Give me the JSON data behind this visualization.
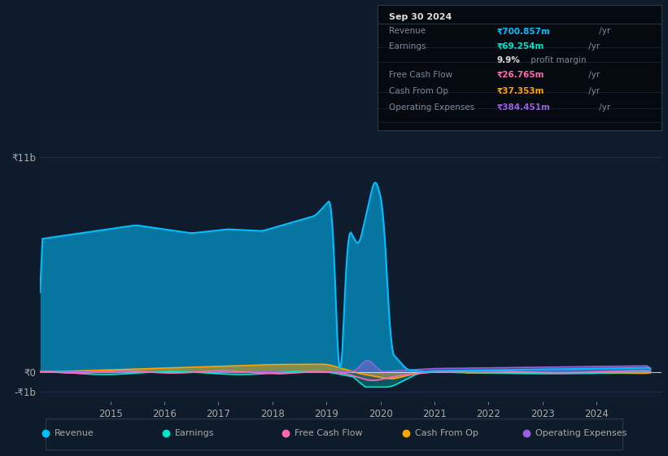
{
  "bg_color": "#0d1b2a",
  "plot_bg_color": "#0e1c2e",
  "grid_color": "#1e3a5f",
  "text_color": "#aaaaaa",
  "title_label": "₹11b",
  "y_label_zero": "₹0",
  "y_label_neg": "-₹1b",
  "x_ticks": [
    2015,
    2016,
    2017,
    2018,
    2019,
    2020,
    2021,
    2022,
    2023,
    2024
  ],
  "ylim_low": -1500000000.0,
  "ylim_high": 12500000000.0,
  "revenue_color": "#00bfff",
  "earnings_color": "#00e5cc",
  "fcf_color": "#ff69b4",
  "cashfromop_color": "#ffa500",
  "opex_color": "#9b5fe0",
  "info_box": {
    "date": "Sep 30 2024",
    "rows": [
      {
        "label": "Revenue",
        "value": "₹700.857m",
        "suffix": " /yr",
        "color": "#00bfff"
      },
      {
        "label": "Earnings",
        "value": "₹69.254m",
        "suffix": " /yr",
        "color": "#00e5cc"
      },
      {
        "label": "",
        "value": "9.9%",
        "suffix": " profit margin",
        "color": "#ffffff"
      },
      {
        "label": "Free Cash Flow",
        "value": "₹26.765m",
        "suffix": " /yr",
        "color": "#ff69b4"
      },
      {
        "label": "Cash From Op",
        "value": "₹37.353m",
        "suffix": " /yr",
        "color": "#ffa500"
      },
      {
        "label": "Operating Expenses",
        "value": "₹384.451m",
        "suffix": " /yr",
        "color": "#9b5fe0"
      }
    ]
  },
  "legend_items": [
    {
      "label": "Revenue",
      "color": "#00bfff"
    },
    {
      "label": "Earnings",
      "color": "#00e5cc"
    },
    {
      "label": "Free Cash Flow",
      "color": "#ff69b4"
    },
    {
      "label": "Cash From Op",
      "color": "#ffa500"
    },
    {
      "label": "Operating Expenses",
      "color": "#9b5fe0"
    }
  ]
}
